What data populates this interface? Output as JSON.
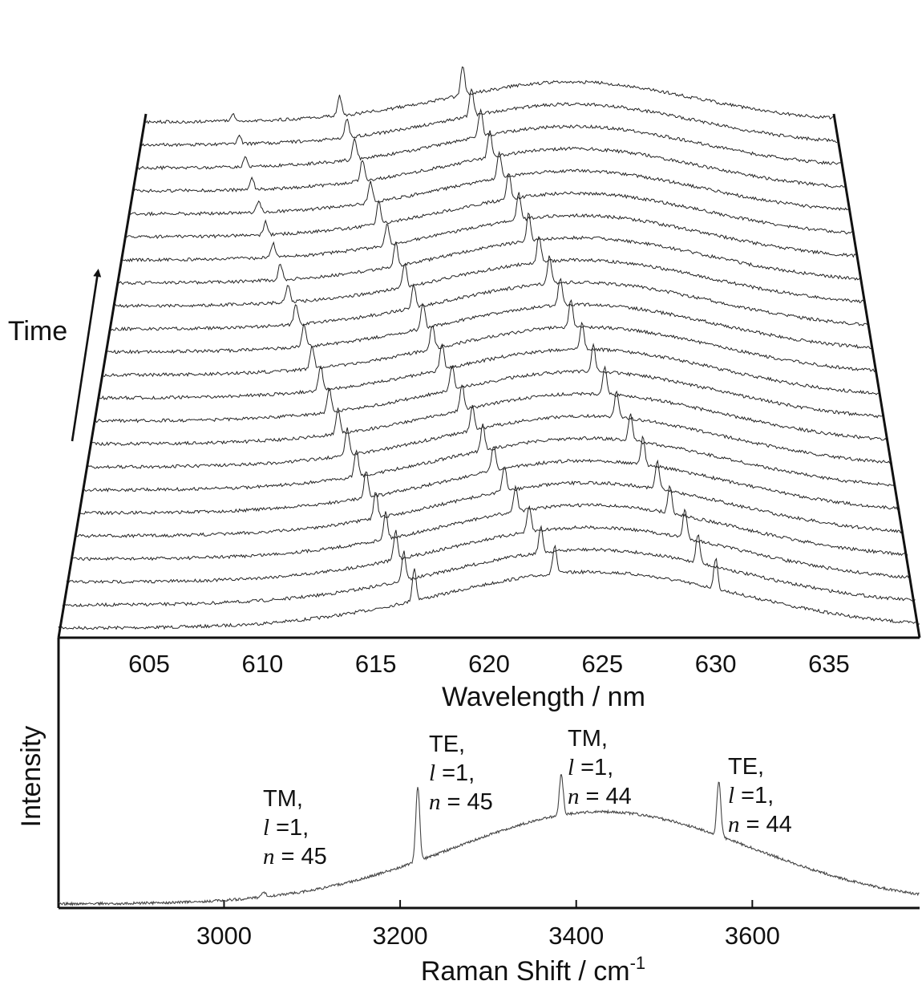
{
  "chart_data": [
    {
      "type": "line",
      "subtype": "waterfall",
      "xlabel": "Wavelength / nm",
      "ylabel": "Time",
      "xlim": [
        601,
        639
      ],
      "x_ticks": [
        "605",
        "610",
        "615",
        "620",
        "625",
        "630",
        "635"
      ],
      "x_tick_values": [
        605,
        610,
        615,
        620,
        625,
        630,
        635
      ],
      "trace_count": 23,
      "baseline_center_nm": 624.5,
      "series": [
        {
          "name": "",
          "peaks_nm": [
            616.7,
            622.9,
            630.0
          ],
          "peak_heights": [
            0.9,
            0.78,
            0.85
          ]
        },
        {
          "name": "",
          "peaks_nm": [
            616.2,
            622.3,
            629.3
          ],
          "peak_heights": [
            0.8,
            0.7,
            0.8
          ]
        },
        {
          "name": "",
          "peaks_nm": [
            615.8,
            621.8,
            628.8
          ],
          "peak_heights": [
            0.8,
            0.7,
            0.8
          ]
        },
        {
          "name": "",
          "peaks_nm": [
            615.3,
            621.2,
            628.2
          ],
          "peak_heights": [
            0.75,
            0.7,
            0.75
          ]
        },
        {
          "name": "",
          "peaks_nm": [
            614.8,
            620.7,
            627.7
          ],
          "peak_heights": [
            0.75,
            0.7,
            0.75
          ]
        },
        {
          "name": "",
          "peaks_nm": [
            614.3,
            620.2,
            627.1
          ],
          "peak_heights": [
            0.75,
            0.7,
            0.75
          ]
        },
        {
          "name": "",
          "peaks_nm": [
            613.8,
            619.7,
            626.6
          ],
          "peak_heights": [
            0.75,
            0.7,
            0.75
          ]
        },
        {
          "name": "",
          "peaks_nm": [
            613.3,
            619.2,
            626.0
          ],
          "peak_heights": [
            0.75,
            0.7,
            0.75
          ]
        },
        {
          "name": "",
          "peaks_nm": [
            612.8,
            618.7,
            625.5
          ],
          "peak_heights": [
            0.7,
            0.7,
            0.75
          ]
        },
        {
          "name": "",
          "peaks_nm": [
            612.3,
            618.2,
            625.0
          ],
          "peak_heights": [
            0.7,
            0.7,
            0.75
          ]
        },
        {
          "name": "",
          "peaks_nm": [
            611.8,
            617.7,
            624.5
          ],
          "peak_heights": [
            0.7,
            0.7,
            0.75
          ]
        },
        {
          "name": "",
          "peaks_nm": [
            611.3,
            617.2,
            624.0
          ],
          "peak_heights": [
            0.65,
            0.7,
            0.75
          ]
        },
        {
          "name": "",
          "peaks_nm": [
            610.8,
            616.7,
            623.5
          ],
          "peak_heights": [
            0.6,
            0.7,
            0.75
          ]
        },
        {
          "name": "",
          "peaks_nm": [
            610.3,
            616.2,
            623.0
          ],
          "peak_heights": [
            0.55,
            0.65,
            0.75
          ]
        },
        {
          "name": "",
          "peaks_nm": [
            609.8,
            615.7,
            622.5
          ],
          "peak_heights": [
            0.5,
            0.65,
            0.75
          ]
        },
        {
          "name": "",
          "peaks_nm": [
            609.3,
            615.2,
            622.0
          ],
          "peak_heights": [
            0.45,
            0.65,
            0.75
          ]
        },
        {
          "name": "",
          "peaks_nm": [
            608.8,
            614.7,
            621.5
          ],
          "peak_heights": [
            0.4,
            0.6,
            0.75
          ]
        },
        {
          "name": "",
          "peaks_nm": [
            608.3,
            614.2,
            621.0
          ],
          "peak_heights": [
            0.35,
            0.6,
            0.75
          ]
        },
        {
          "name": "",
          "peaks_nm": [
            607.8,
            613.7,
            620.5
          ],
          "peak_heights": [
            0.3,
            0.6,
            0.75
          ]
        },
        {
          "name": "",
          "peaks_nm": [
            607.3,
            613.2,
            620.0
          ],
          "peak_heights": [
            0.3,
            0.6,
            0.75
          ]
        },
        {
          "name": "",
          "peaks_nm": [
            606.8,
            612.7,
            619.5
          ],
          "peak_heights": [
            0.25,
            0.55,
            0.75
          ]
        },
        {
          "name": "",
          "peaks_nm": [
            606.3,
            612.2,
            619.0
          ],
          "peak_heights": [
            0.25,
            0.55,
            0.75
          ]
        },
        {
          "name": "",
          "peaks_nm": [
            605.8,
            611.7,
            618.5
          ],
          "peak_heights": [
            0.2,
            0.55,
            0.85
          ]
        }
      ]
    },
    {
      "type": "line",
      "xlabel": "Raman Shift / cm",
      "xlabel_superscript": "-1",
      "ylabel": "Intensity",
      "xlim": [
        2812,
        3790
      ],
      "x_ticks": [
        "3000",
        "3200",
        "3400",
        "3600"
      ],
      "x_tick_values": [
        3000,
        3200,
        3400,
        3600
      ],
      "background": {
        "center": 3430,
        "width": 240
      },
      "peaks": [
        {
          "x": 3045,
          "height": 0.04
        },
        {
          "x": 3220,
          "height": 0.55
        },
        {
          "x": 3383,
          "height": 0.3
        },
        {
          "x": 3562,
          "height": 0.4
        }
      ],
      "annotations": [
        {
          "mode": "TM,",
          "l_var": "l",
          "l_val": " =1,",
          "n_var": "n",
          "n_val": " = 45"
        },
        {
          "mode": "TE,",
          "l_var": "l",
          "l_val": " =1,",
          "n_var": "n",
          "n_val": " = 45"
        },
        {
          "mode": "TM,",
          "l_var": "l",
          "l_val": " =1,",
          "n_var": "n",
          "n_val": " = 44"
        },
        {
          "mode": "TE,",
          "l_var": "l",
          "l_val": " =1,",
          "n_var": "n",
          "n_val": " = 44"
        }
      ]
    }
  ]
}
